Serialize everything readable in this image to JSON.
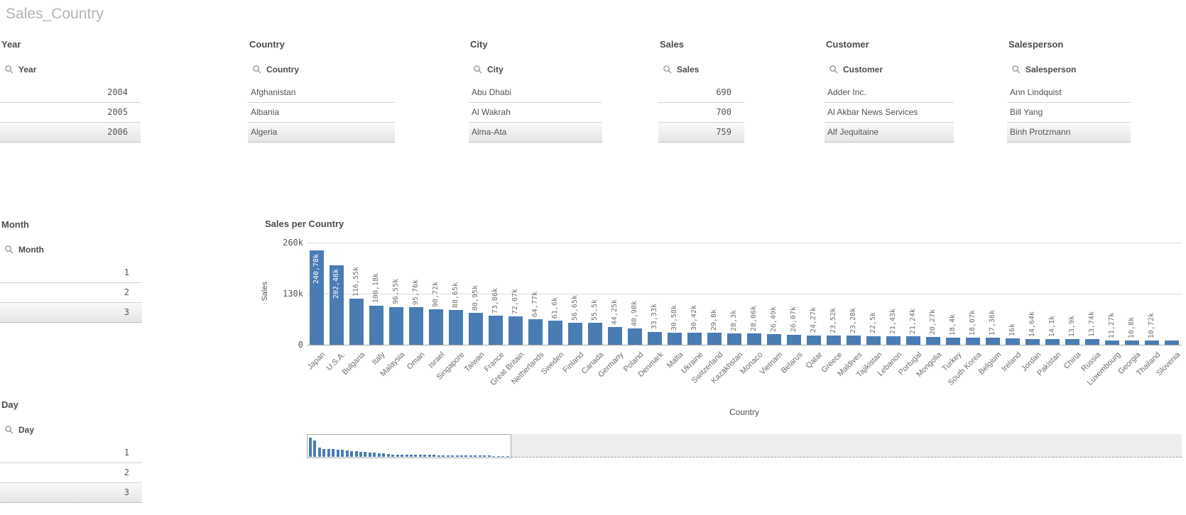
{
  "page": {
    "title": "Sales_Country"
  },
  "filters": [
    {
      "id": "year",
      "title": "Year",
      "search_label": "Year",
      "align": "right",
      "items": [
        "2004",
        "2005",
        "2006"
      ]
    },
    {
      "id": "country",
      "title": "Country",
      "search_label": "Country",
      "align": "left",
      "items": [
        "Afghanistan",
        "Albania",
        "Algeria"
      ]
    },
    {
      "id": "city",
      "title": "City",
      "search_label": "City",
      "align": "left",
      "items": [
        "Abu Dhabi",
        "Al Wakrah",
        "Alma-Ata"
      ]
    },
    {
      "id": "sales",
      "title": "Sales",
      "search_label": "Sales",
      "align": "right",
      "items": [
        "690",
        "700",
        "759"
      ]
    },
    {
      "id": "customer",
      "title": "Customer",
      "search_label": "Customer",
      "align": "left",
      "items": [
        "Adder Inc.",
        "Al Akbar News Services",
        "Alf Jequitaine"
      ]
    },
    {
      "id": "salesperson",
      "title": "Salesperson",
      "search_label": "Salesperson",
      "align": "left",
      "items": [
        "Ann Lindquist",
        "Bill Yang",
        "Binh Protzmann"
      ]
    },
    {
      "id": "month",
      "title": "Month",
      "search_label": "Month",
      "align": "right",
      "items": [
        "1",
        "2",
        "3"
      ]
    },
    {
      "id": "day",
      "title": "Day",
      "search_label": "Day",
      "align": "right",
      "items": [
        "1",
        "2",
        "3"
      ]
    }
  ],
  "chart_data": {
    "type": "bar",
    "title": "Sales per Country",
    "xlabel": "Country",
    "ylabel": "Sales",
    "ylim": [
      0,
      260000
    ],
    "yticks": [
      {
        "label": "260k",
        "value": 260000
      },
      {
        "label": "130k",
        "value": 130000
      },
      {
        "label": "0",
        "value": 0
      }
    ],
    "grid": "horizontal",
    "legend_position": "none",
    "categories": [
      "Japan",
      "U.S.A.",
      "Bulgaria",
      "Italy",
      "Malaysia",
      "Oman",
      "Israel",
      "Singapore",
      "Taiwan",
      "France",
      "Great Britain",
      "Netherlands",
      "Sweden",
      "Finland",
      "Canada",
      "Germany",
      "Poland",
      "Denmark",
      "Malta",
      "Ukraine",
      "Switzerland",
      "Kazakhstan",
      "Monaco",
      "Vietnam",
      "Belarus",
      "Qatar",
      "Greece",
      "Maldives",
      "Tajikistan",
      "Lebanon",
      "Portugal",
      "Mongolia",
      "Turkey",
      "South Korea",
      "Belgium",
      "Ireland",
      "Jordan",
      "Pakistan",
      "China",
      "Russia",
      "Luxembourg",
      "Georgia",
      "Thailand",
      "Slovenia"
    ],
    "values": [
      240780,
      202460,
      116550,
      100180,
      96550,
      95760,
      90720,
      88650,
      80950,
      73860,
      72070,
      64770,
      61600,
      56650,
      55500,
      44250,
      40980,
      33330,
      30580,
      30420,
      29800,
      28300,
      28060,
      26490,
      26070,
      24270,
      23520,
      23280,
      22500,
      21430,
      21240,
      20270,
      18400,
      18070,
      17360,
      16000,
      14640,
      14100,
      13900,
      13740,
      11270,
      10800,
      10720,
      10500
    ],
    "bar_labels": [
      "240,78k",
      "202,46k",
      "116,55k",
      "100,18k",
      "96,55k",
      "95,76k",
      "90,72k",
      "88,65k",
      "80,95k",
      "73,86k",
      "72,07k",
      "64,77k",
      "61,6k",
      "56,65k",
      "55,5k",
      "44,25k",
      "40,98k",
      "33,33k",
      "30,58k",
      "30,42k",
      "29,8k",
      "28,3k",
      "28,06k",
      "26,49k",
      "26,07k",
      "24,27k",
      "23,52k",
      "23,28k",
      "22,5k",
      "21,43k",
      "21,24k",
      "20,27k",
      "18,4k",
      "18,07k",
      "17,36k",
      "16k",
      "14,64k",
      "14,1k",
      "13,9k",
      "13,74k",
      "11,27k",
      "10,8k",
      "10,72k",
      ""
    ]
  },
  "colors": {
    "bar": "#4a7cb4",
    "bar_label_outside": "#737373",
    "bar_label_inside": "#ffffff",
    "page_title": "#b4b4b4",
    "text": "#545454"
  }
}
